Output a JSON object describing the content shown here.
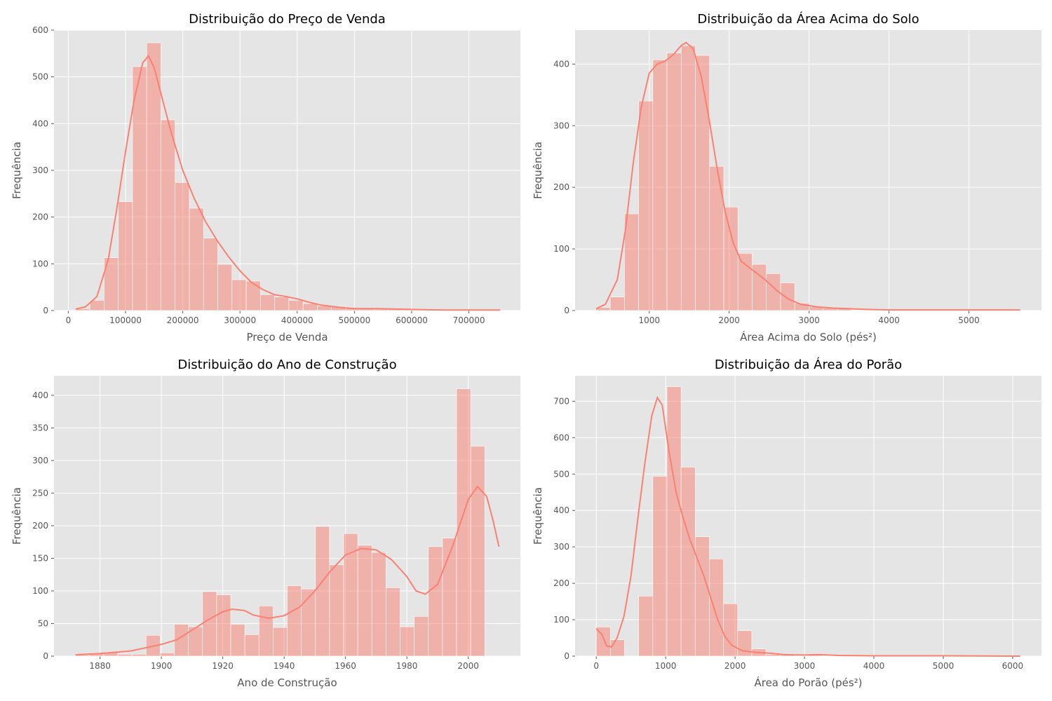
{
  "chart_data": [
    {
      "type": "bar",
      "title": "Distribuição do Preço de Venda",
      "xlabel": "Preço de Venda",
      "ylabel": "Frequência",
      "xlim": [
        -25000,
        790000
      ],
      "ylim": [
        0,
        600
      ],
      "xticks": [
        0,
        100000,
        200000,
        300000,
        400000,
        500000,
        600000,
        700000
      ],
      "xtick_labels": [
        "0",
        "100000",
        "200000",
        "300000",
        "400000",
        "500000",
        "600000",
        "700000"
      ],
      "yticks": [
        0,
        100,
        200,
        300,
        400,
        500,
        600
      ],
      "ytick_labels": [
        "0",
        "100",
        "200",
        "300",
        "400",
        "500",
        "600"
      ],
      "bin_start": 12789,
      "bin_width": 24840,
      "values": [
        4,
        22,
        113,
        233,
        522,
        573,
        408,
        274,
        219,
        155,
        99,
        66,
        63,
        34,
        29,
        22,
        15,
        10,
        9,
        5,
        4,
        3,
        3,
        2,
        2,
        1,
        1,
        1,
        1,
        1
      ],
      "kde": [
        [
          12789,
          3
        ],
        [
          30000,
          8
        ],
        [
          50000,
          30
        ],
        [
          70000,
          110
        ],
        [
          85000,
          220
        ],
        [
          100000,
          340
        ],
        [
          115000,
          450
        ],
        [
          130000,
          530
        ],
        [
          140000,
          545
        ],
        [
          150000,
          520
        ],
        [
          165000,
          450
        ],
        [
          180000,
          380
        ],
        [
          200000,
          300
        ],
        [
          220000,
          240
        ],
        [
          240000,
          190
        ],
        [
          260000,
          150
        ],
        [
          280000,
          115
        ],
        [
          300000,
          85
        ],
        [
          320000,
          60
        ],
        [
          340000,
          45
        ],
        [
          360000,
          34
        ],
        [
          380000,
          30
        ],
        [
          400000,
          25
        ],
        [
          420000,
          18
        ],
        [
          440000,
          12
        ],
        [
          460000,
          9
        ],
        [
          480000,
          6
        ],
        [
          500000,
          4
        ],
        [
          540000,
          4
        ],
        [
          580000,
          3
        ],
        [
          620000,
          2
        ],
        [
          660000,
          1
        ],
        [
          700000,
          1
        ],
        [
          755000,
          1
        ]
      ],
      "legend": "none",
      "grid": true
    },
    {
      "type": "bar",
      "title": "Distribuição da Área Acima do Solo",
      "xlabel": "Área Acima do Solo (pés²)",
      "ylabel": "Frequência",
      "xlim": [
        72,
        5908
      ],
      "ylim": [
        0,
        455
      ],
      "xticks": [
        1000,
        2000,
        3000,
        4000,
        5000
      ],
      "xtick_labels": [
        "1000",
        "2000",
        "3000",
        "4000",
        "5000"
      ],
      "yticks": [
        0,
        100,
        200,
        300,
        400
      ],
      "ytick_labels": [
        "0",
        "100",
        "200",
        "300",
        "400"
      ],
      "bin_start": 334,
      "bin_width": 177.6,
      "values": [
        5,
        22,
        157,
        340,
        407,
        418,
        430,
        414,
        234,
        168,
        93,
        75,
        60,
        45,
        12,
        6,
        4,
        3,
        1,
        1,
        0,
        0,
        0,
        0,
        0,
        0,
        0,
        0,
        0,
        1
      ],
      "kde": [
        [
          334,
          3
        ],
        [
          450,
          10
        ],
        [
          600,
          50
        ],
        [
          700,
          130
        ],
        [
          800,
          240
        ],
        [
          900,
          330
        ],
        [
          1000,
          385
        ],
        [
          1100,
          400
        ],
        [
          1200,
          405
        ],
        [
          1300,
          415
        ],
        [
          1400,
          430
        ],
        [
          1460,
          435
        ],
        [
          1550,
          425
        ],
        [
          1650,
          380
        ],
        [
          1750,
          310
        ],
        [
          1850,
          230
        ],
        [
          1950,
          160
        ],
        [
          2050,
          110
        ],
        [
          2150,
          80
        ],
        [
          2300,
          65
        ],
        [
          2450,
          50
        ],
        [
          2600,
          32
        ],
        [
          2750,
          18
        ],
        [
          2900,
          10
        ],
        [
          3100,
          6
        ],
        [
          3300,
          4
        ],
        [
          3500,
          3
        ],
        [
          3700,
          2
        ],
        [
          4000,
          1
        ],
        [
          4500,
          1
        ],
        [
          5000,
          1
        ],
        [
          5642,
          1
        ]
      ],
      "legend": "none",
      "grid": true
    },
    {
      "type": "bar",
      "title": "Distribuição do Ano de Construção",
      "xlabel": "Ano de Construção",
      "ylabel": "Frequência",
      "xlim": [
        1865,
        2017
      ],
      "ylim": [
        0,
        430
      ],
      "xticks": [
        1880,
        1900,
        1920,
        1940,
        1960,
        1980,
        2000
      ],
      "xtick_labels": [
        "1880",
        "1900",
        "1920",
        "1940",
        "1960",
        "1980",
        "2000"
      ],
      "yticks": [
        0,
        50,
        100,
        150,
        200,
        250,
        300,
        350,
        400
      ],
      "ytick_labels": [
        "0",
        "50",
        "100",
        "150",
        "200",
        "250",
        "300",
        "350",
        "400"
      ],
      "bin_start": 1872,
      "bin_width": 4.6,
      "values": [
        2,
        4,
        6,
        3,
        3,
        32,
        5,
        49,
        45,
        99,
        94,
        49,
        33,
        77,
        44,
        108,
        103,
        199,
        140,
        188,
        170,
        159,
        105,
        45,
        61,
        168,
        181,
        410,
        322
      ],
      "kde": [
        [
          1872,
          2
        ],
        [
          1880,
          4
        ],
        [
          1890,
          8
        ],
        [
          1900,
          18
        ],
        [
          1905,
          25
        ],
        [
          1910,
          40
        ],
        [
          1915,
          55
        ],
        [
          1920,
          68
        ],
        [
          1923,
          72
        ],
        [
          1927,
          70
        ],
        [
          1930,
          63
        ],
        [
          1935,
          58
        ],
        [
          1940,
          62
        ],
        [
          1945,
          75
        ],
        [
          1950,
          100
        ],
        [
          1955,
          130
        ],
        [
          1960,
          155
        ],
        [
          1965,
          165
        ],
        [
          1970,
          163
        ],
        [
          1975,
          148
        ],
        [
          1980,
          122
        ],
        [
          1983,
          100
        ],
        [
          1986,
          95
        ],
        [
          1990,
          110
        ],
        [
          1995,
          170
        ],
        [
          2000,
          240
        ],
        [
          2003,
          260
        ],
        [
          2006,
          245
        ],
        [
          2008,
          210
        ],
        [
          2010,
          168
        ]
      ],
      "legend": "none",
      "grid": true
    },
    {
      "type": "bar",
      "title": "Distribuição da Área do Porão",
      "xlabel": "Área do Porão (pés²)",
      "ylabel": "Frequência",
      "xlim": [
        -305,
        6415
      ],
      "ylim": [
        0,
        770
      ],
      "xticks": [
        0,
        1000,
        2000,
        3000,
        4000,
        5000,
        6000
      ],
      "xtick_labels": [
        "0",
        "1000",
        "2000",
        "3000",
        "4000",
        "5000",
        "6000"
      ],
      "yticks": [
        0,
        100,
        200,
        300,
        400,
        500,
        600,
        700
      ],
      "ytick_labels": [
        "0",
        "100",
        "200",
        "300",
        "400",
        "500",
        "600",
        "700"
      ],
      "bin_start": 0,
      "bin_width": 203.7,
      "values": [
        80,
        45,
        0,
        165,
        494,
        740,
        519,
        328,
        267,
        144,
        70,
        20,
        5,
        3,
        1,
        3,
        1,
        0,
        0,
        0,
        0,
        0,
        0,
        0,
        0,
        0,
        0,
        0,
        0,
        1
      ],
      "kde": [
        [
          0,
          75
        ],
        [
          80,
          60
        ],
        [
          150,
          28
        ],
        [
          220,
          25
        ],
        [
          300,
          50
        ],
        [
          400,
          110
        ],
        [
          500,
          220
        ],
        [
          600,
          380
        ],
        [
          700,
          530
        ],
        [
          800,
          660
        ],
        [
          880,
          710
        ],
        [
          950,
          690
        ],
        [
          1050,
          560
        ],
        [
          1150,
          450
        ],
        [
          1250,
          380
        ],
        [
          1350,
          320
        ],
        [
          1450,
          270
        ],
        [
          1550,
          220
        ],
        [
          1650,
          160
        ],
        [
          1750,
          100
        ],
        [
          1850,
          55
        ],
        [
          1950,
          30
        ],
        [
          2100,
          15
        ],
        [
          2300,
          10
        ],
        [
          2500,
          8
        ],
        [
          2700,
          4
        ],
        [
          3000,
          3
        ],
        [
          3200,
          4
        ],
        [
          3500,
          2
        ],
        [
          4000,
          1
        ],
        [
          5000,
          1
        ],
        [
          6110,
          0
        ]
      ],
      "legend": "none",
      "grid": true
    }
  ]
}
